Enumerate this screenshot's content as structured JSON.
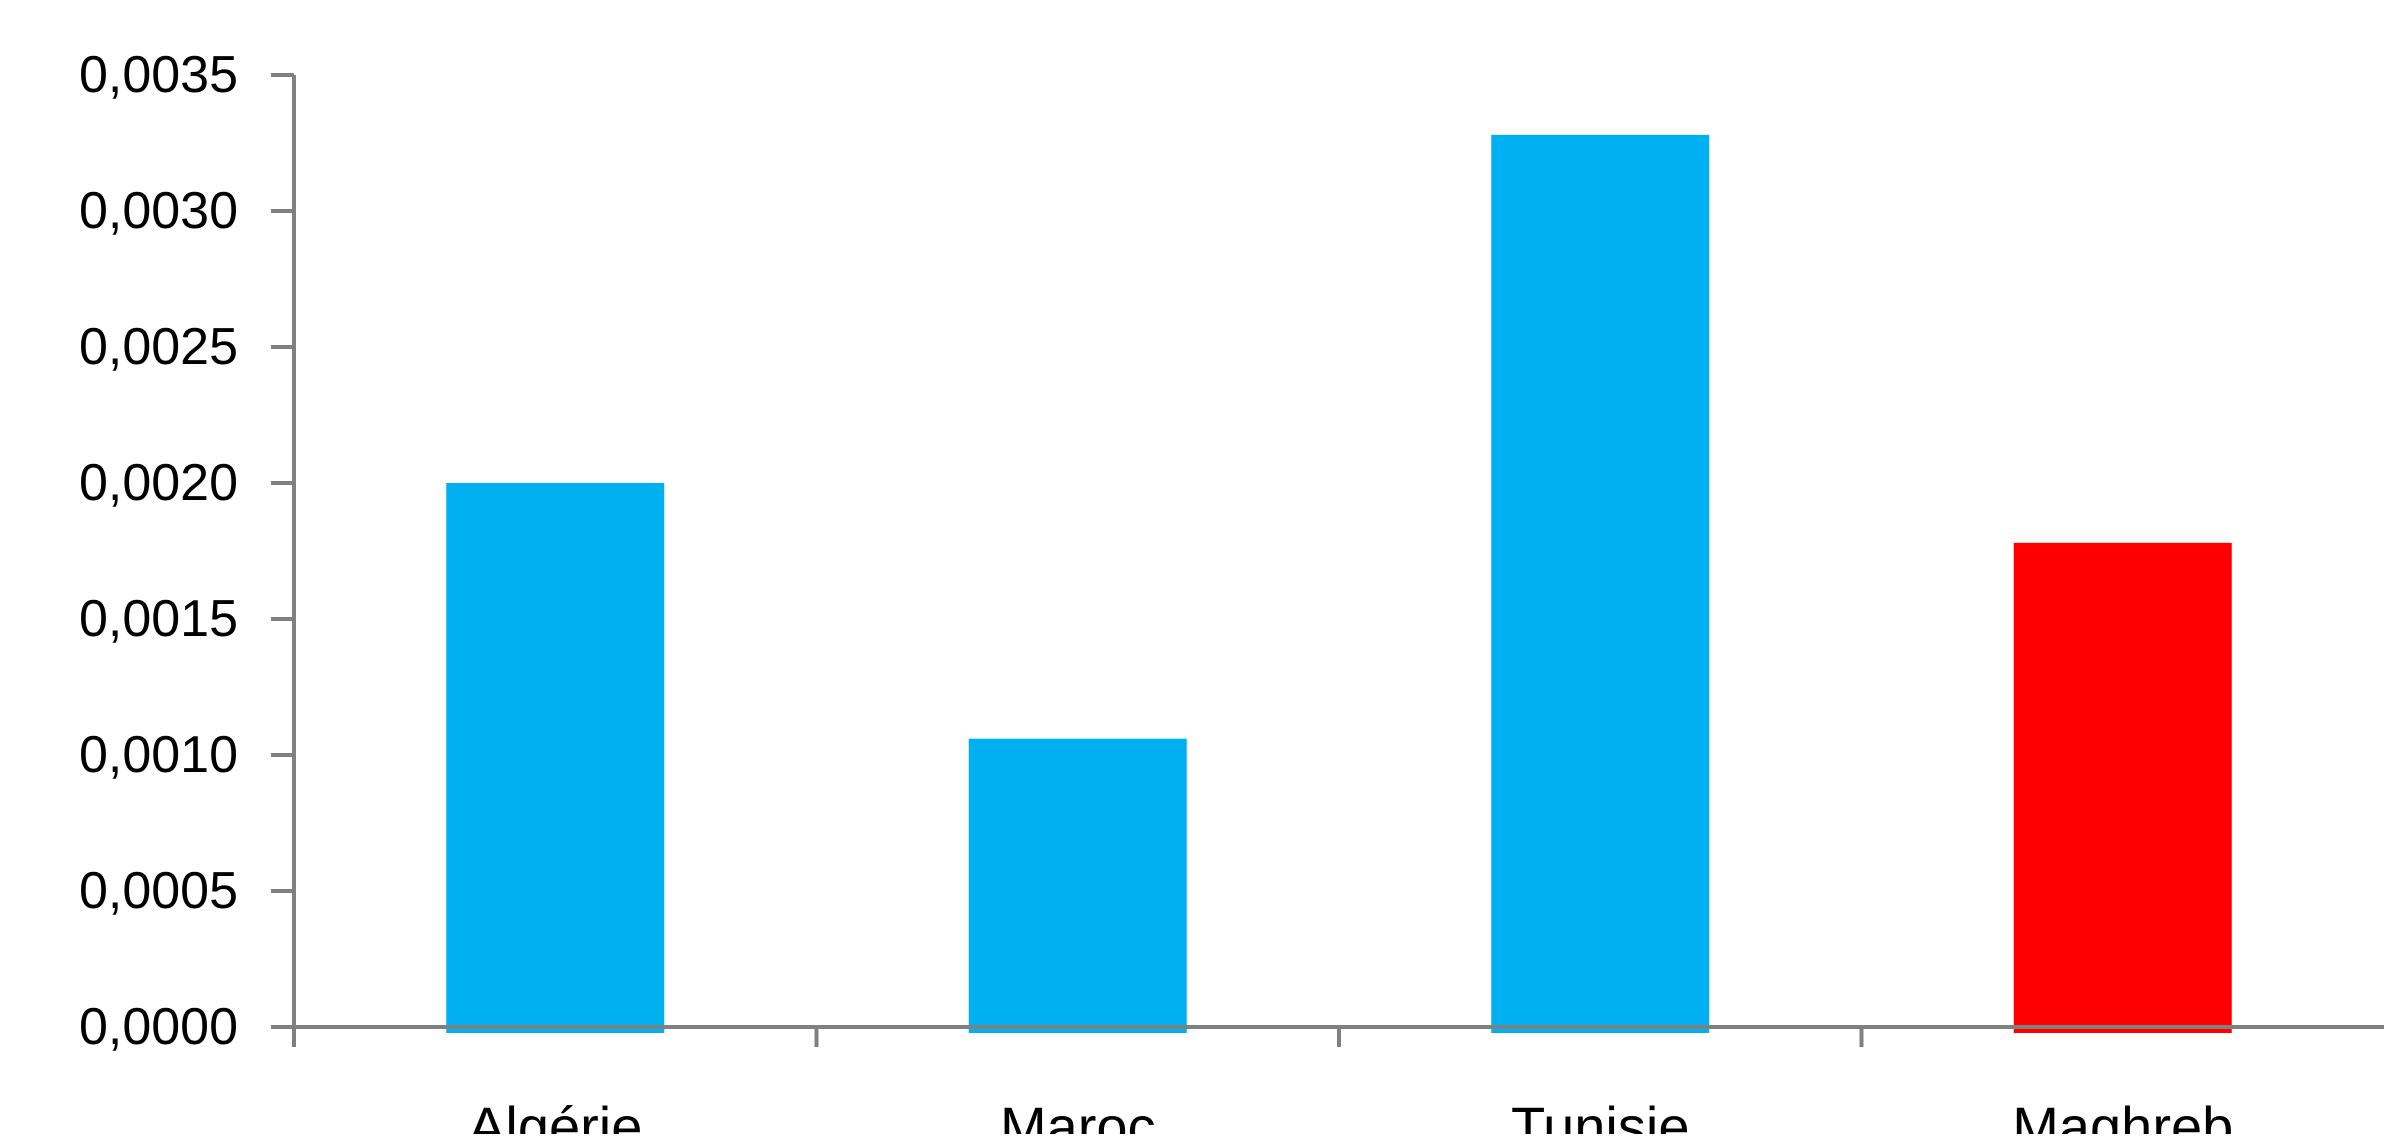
{
  "chart_data": {
    "type": "bar",
    "categories": [
      "Algérie",
      "Maroc",
      "Tunisie",
      "Maghreb"
    ],
    "values": [
      0.002,
      0.00106,
      0.00328,
      0.00178
    ],
    "bar_colors": [
      "#00B0F0",
      "#00B0F0",
      "#00B0F0",
      "#FF0000"
    ],
    "ylim": [
      0,
      0.0035
    ],
    "yticks": [
      "0,0000",
      "0,0005",
      "0,0010",
      "0,0015",
      "0,0020",
      "0,0025",
      "0,0030",
      "0,0035"
    ],
    "xlabel": "",
    "ylabel": "",
    "title": "",
    "grid": false,
    "legend": "none",
    "axis_color": "#808080"
  }
}
